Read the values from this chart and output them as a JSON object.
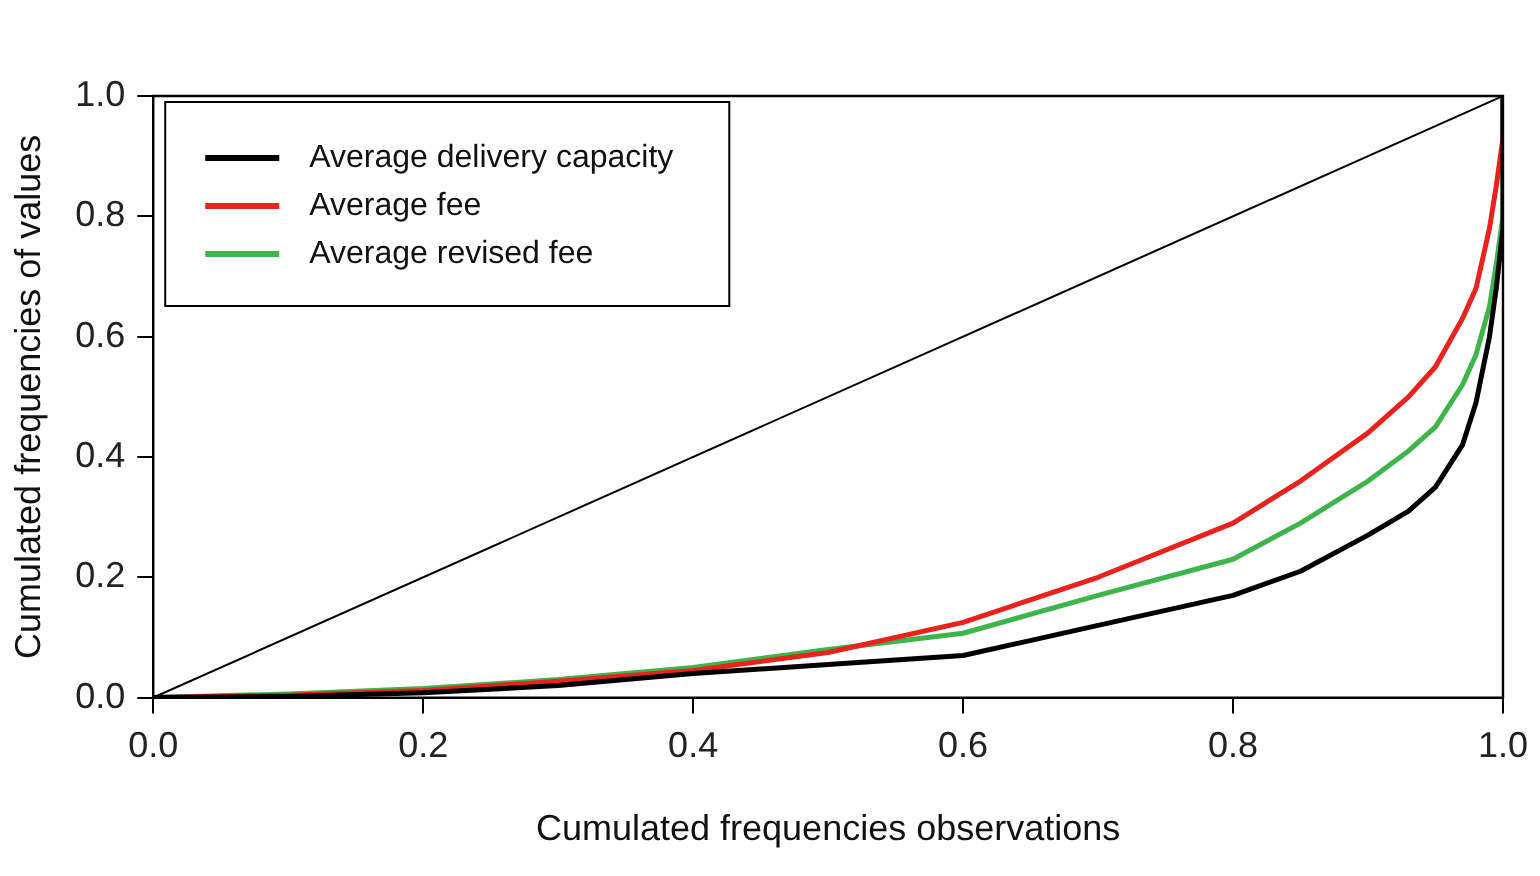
{
  "chart_data": {
    "type": "line",
    "xlabel": "Cumulated frequencies observations",
    "ylabel": "Cumulated frequencies of values",
    "xlim": [
      0,
      1
    ],
    "ylim": [
      0,
      1
    ],
    "xticks": [
      {
        "value": 0,
        "label": "0.0"
      },
      {
        "value": 0.2,
        "label": "0.2"
      },
      {
        "value": 0.4,
        "label": "0.4"
      },
      {
        "value": 0.6,
        "label": "0.6"
      },
      {
        "value": 0.8,
        "label": "0.8"
      },
      {
        "value": 1,
        "label": "1.0"
      }
    ],
    "yticks": [
      {
        "value": 0,
        "label": "0.0"
      },
      {
        "value": 0.2,
        "label": "0.2"
      },
      {
        "value": 0.4,
        "label": "0.4"
      },
      {
        "value": 0.6,
        "label": "0.6"
      },
      {
        "value": 0.8,
        "label": "0.8"
      },
      {
        "value": 1,
        "label": "1.0"
      }
    ],
    "grid": false,
    "legend": "top left",
    "marker": "none",
    "line_style": "solid",
    "series": [
      {
        "color": "#000000",
        "x": [
          0,
          1
        ],
        "values": [
          0,
          1
        ]
      },
      {
        "name": "Average delivery capacity",
        "color": "#000000",
        "x": [
          0,
          0.1,
          0.2,
          0.3,
          0.4,
          0.5,
          0.6,
          0.7,
          0.8,
          0.85,
          0.9,
          0.93,
          0.95,
          0.97,
          0.98,
          0.99,
          0.995,
          1,
          1
        ],
        "values": [
          0,
          0.002,
          0.008,
          0.02,
          0.04,
          0.055,
          0.07,
          0.12,
          0.17,
          0.21,
          0.27,
          0.31,
          0.35,
          0.42,
          0.49,
          0.6,
          0.68,
          0.78,
          1
        ]
      },
      {
        "name": "Average fee",
        "color": "#e8231e",
        "x": [
          0,
          0.1,
          0.2,
          0.3,
          0.4,
          0.5,
          0.6,
          0.7,
          0.8,
          0.85,
          0.9,
          0.93,
          0.95,
          0.97,
          0.98,
          0.99,
          0.995,
          1,
          1
        ],
        "values": [
          0,
          0.004,
          0.012,
          0.027,
          0.045,
          0.075,
          0.125,
          0.2,
          0.29,
          0.36,
          0.44,
          0.5,
          0.55,
          0.63,
          0.68,
          0.78,
          0.85,
          0.93,
          1
        ]
      },
      {
        "name": "Average revised fee",
        "color": "#3db54a",
        "x": [
          0,
          0.1,
          0.2,
          0.3,
          0.4,
          0.5,
          0.6,
          0.7,
          0.8,
          0.85,
          0.9,
          0.93,
          0.95,
          0.97,
          0.98,
          0.99,
          0.995,
          1,
          1
        ],
        "values": [
          0,
          0.006,
          0.015,
          0.03,
          0.05,
          0.08,
          0.107,
          0.17,
          0.23,
          0.29,
          0.36,
          0.41,
          0.45,
          0.52,
          0.57,
          0.65,
          0.72,
          0.8,
          1
        ]
      }
    ]
  }
}
